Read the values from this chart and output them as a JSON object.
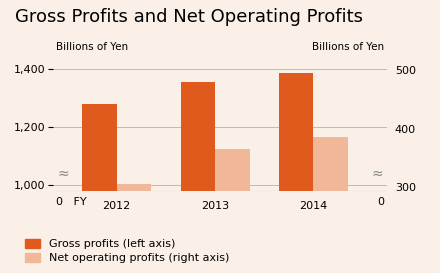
{
  "title": "Gross Profits and Net Operating Profits",
  "years": [
    "2012",
    "2013",
    "2014"
  ],
  "gross_profits": [
    1280,
    1355,
    1385
  ],
  "net_profits": [
    305,
    365,
    385
  ],
  "gross_color": "#E05A1E",
  "net_color": "#F0B898",
  "background_color": "#FAF0E8",
  "left_axis_label": "Billions of Yen",
  "right_axis_label": "Billions of Yen",
  "left_ylim": [
    980,
    1430
  ],
  "right_ylim": [
    293,
    517
  ],
  "left_yticks": [
    1000,
    1200,
    1400
  ],
  "right_yticks": [
    300,
    400,
    500
  ],
  "left_ytick_labels": [
    "1,000",
    "1,200",
    "1,400"
  ],
  "right_ytick_labels": [
    "300",
    "400",
    "500"
  ],
  "legend_gross": "Gross profits (left axis)",
  "legend_net": "Net operating profits (right axis)",
  "title_fontsize": 13,
  "axis_label_fontsize": 7.5,
  "tick_fontsize": 8,
  "legend_fontsize": 8,
  "bar_width": 0.35,
  "approx_symbol": "≈"
}
